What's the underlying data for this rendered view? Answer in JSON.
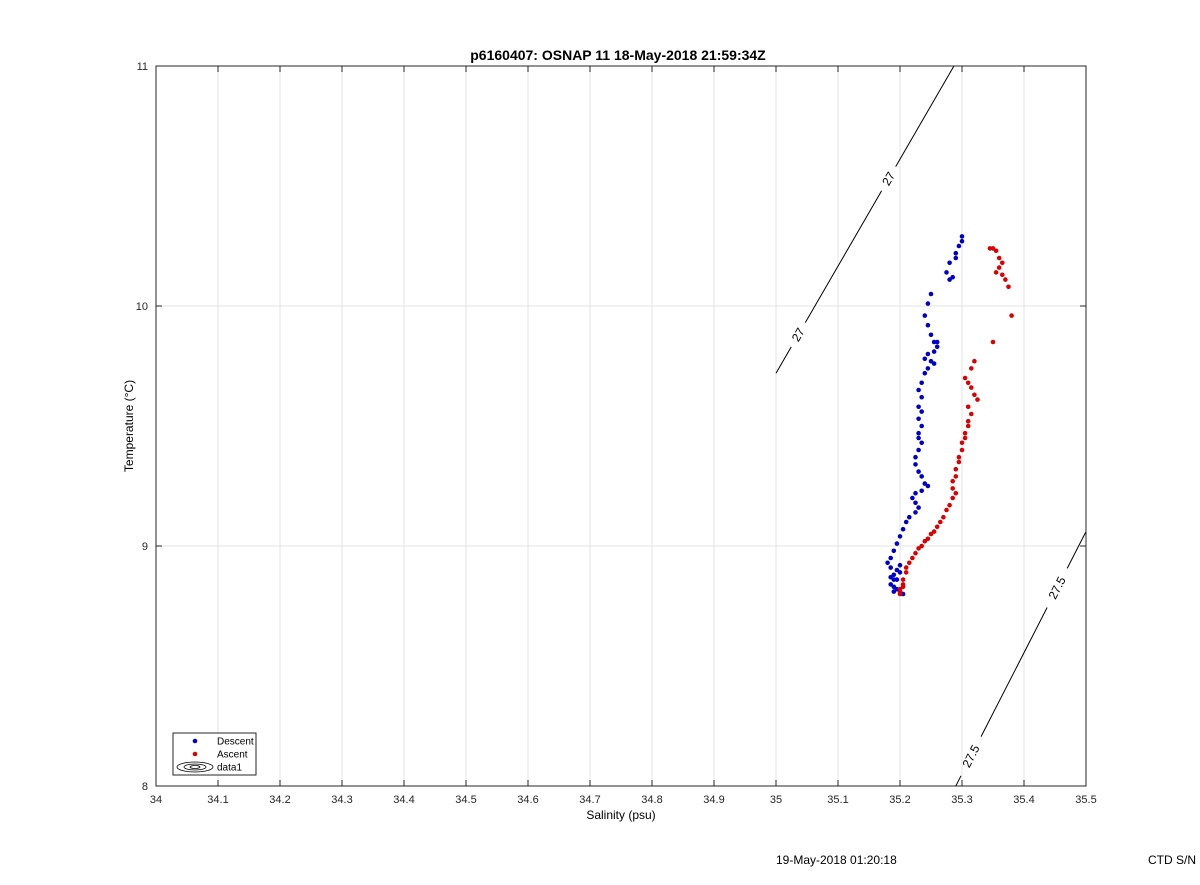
{
  "chart_data": {
    "type": "scatter",
    "title": "p6160407: OSNAP 11 18-May-2018 21:59:34Z",
    "xlabel": "Salinity (psu)",
    "ylabel": "Temperature (°C)",
    "xlim": [
      34,
      35.5
    ],
    "ylim": [
      8,
      11
    ],
    "x_ticks": [
      34,
      34.1,
      34.2,
      34.3,
      34.4,
      34.5,
      34.6,
      34.7,
      34.8,
      34.9,
      35,
      35.1,
      35.2,
      35.3,
      35.4,
      35.5
    ],
    "x_tick_labels": [
      "34",
      "34.1",
      "34.2",
      "34.3",
      "34.4",
      "34.5",
      "34.6",
      "34.7",
      "34.8",
      "34.9",
      "35",
      "35.1",
      "35.2",
      "35.3",
      "35.4",
      "35.5"
    ],
    "y_ticks": [
      8,
      9,
      10,
      11
    ],
    "y_tick_labels": [
      "8",
      "9",
      "10",
      "11"
    ],
    "grid": true,
    "legend_position": "bottom-left",
    "series": [
      {
        "name": "Descent",
        "color": "#0000cc",
        "points": [
          [
            35.3,
            10.29
          ],
          [
            35.3,
            10.27
          ],
          [
            35.295,
            10.25
          ],
          [
            35.29,
            10.22
          ],
          [
            35.29,
            10.2
          ],
          [
            35.28,
            10.18
          ],
          [
            35.275,
            10.14
          ],
          [
            35.285,
            10.12
          ],
          [
            35.28,
            10.11
          ],
          [
            35.25,
            10.05
          ],
          [
            35.245,
            10.01
          ],
          [
            35.24,
            9.96
          ],
          [
            35.245,
            9.92
          ],
          [
            35.25,
            9.88
          ],
          [
            35.255,
            9.85
          ],
          [
            35.26,
            9.85
          ],
          [
            35.26,
            9.83
          ],
          [
            35.255,
            9.81
          ],
          [
            35.245,
            9.8
          ],
          [
            35.24,
            9.78
          ],
          [
            35.25,
            9.77
          ],
          [
            35.255,
            9.76
          ],
          [
            35.245,
            9.74
          ],
          [
            35.24,
            9.72
          ],
          [
            35.235,
            9.68
          ],
          [
            35.23,
            9.65
          ],
          [
            35.235,
            9.62
          ],
          [
            35.23,
            9.58
          ],
          [
            35.235,
            9.56
          ],
          [
            35.23,
            9.53
          ],
          [
            35.235,
            9.5
          ],
          [
            35.23,
            9.47
          ],
          [
            35.23,
            9.45
          ],
          [
            35.235,
            9.43
          ],
          [
            35.23,
            9.4
          ],
          [
            35.225,
            9.37
          ],
          [
            35.225,
            9.34
          ],
          [
            35.23,
            9.31
          ],
          [
            35.235,
            9.29
          ],
          [
            35.24,
            9.26
          ],
          [
            35.245,
            9.25
          ],
          [
            35.235,
            9.23
          ],
          [
            35.225,
            9.22
          ],
          [
            35.22,
            9.2
          ],
          [
            35.225,
            9.18
          ],
          [
            35.23,
            9.16
          ],
          [
            35.225,
            9.14
          ],
          [
            35.215,
            9.12
          ],
          [
            35.21,
            9.1
          ],
          [
            35.205,
            9.07
          ],
          [
            35.2,
            9.04
          ],
          [
            35.195,
            9.01
          ],
          [
            35.19,
            8.98
          ],
          [
            35.185,
            8.95
          ],
          [
            35.18,
            8.93
          ],
          [
            35.185,
            8.91
          ],
          [
            35.195,
            8.9
          ],
          [
            35.2,
            8.89
          ],
          [
            35.19,
            8.88
          ],
          [
            35.185,
            8.87
          ],
          [
            35.19,
            8.86
          ],
          [
            35.185,
            8.84
          ],
          [
            35.19,
            8.83
          ],
          [
            35.195,
            8.82
          ],
          [
            35.2,
            8.81
          ],
          [
            35.205,
            8.8
          ],
          [
            35.19,
            8.81
          ],
          [
            35.195,
            8.86
          ],
          [
            35.2,
            8.92
          ]
        ]
      },
      {
        "name": "Ascent",
        "color": "#dd0000",
        "points": [
          [
            35.345,
            10.24
          ],
          [
            35.35,
            10.24
          ],
          [
            35.355,
            10.23
          ],
          [
            35.36,
            10.2
          ],
          [
            35.365,
            10.18
          ],
          [
            35.36,
            10.16
          ],
          [
            35.355,
            10.14
          ],
          [
            35.365,
            10.13
          ],
          [
            35.37,
            10.11
          ],
          [
            35.375,
            10.08
          ],
          [
            35.38,
            9.96
          ],
          [
            35.35,
            9.85
          ],
          [
            35.32,
            9.77
          ],
          [
            35.315,
            9.74
          ],
          [
            35.305,
            9.7
          ],
          [
            35.31,
            9.68
          ],
          [
            35.315,
            9.66
          ],
          [
            35.32,
            9.63
          ],
          [
            35.325,
            9.61
          ],
          [
            35.31,
            9.58
          ],
          [
            35.315,
            9.55
          ],
          [
            35.31,
            9.52
          ],
          [
            35.31,
            9.5
          ],
          [
            35.305,
            9.47
          ],
          [
            35.305,
            9.45
          ],
          [
            35.3,
            9.43
          ],
          [
            35.3,
            9.4
          ],
          [
            35.295,
            9.37
          ],
          [
            35.295,
            9.35
          ],
          [
            35.29,
            9.32
          ],
          [
            35.29,
            9.29
          ],
          [
            35.285,
            9.27
          ],
          [
            35.285,
            9.24
          ],
          [
            35.29,
            9.22
          ],
          [
            35.285,
            9.2
          ],
          [
            35.28,
            9.17
          ],
          [
            35.275,
            9.15
          ],
          [
            35.27,
            9.12
          ],
          [
            35.265,
            9.1
          ],
          [
            35.26,
            9.08
          ],
          [
            35.255,
            9.06
          ],
          [
            35.25,
            9.05
          ],
          [
            35.245,
            9.03
          ],
          [
            35.24,
            9.02
          ],
          [
            35.235,
            9.0
          ],
          [
            35.23,
            8.99
          ],
          [
            35.225,
            8.97
          ],
          [
            35.22,
            8.95
          ],
          [
            35.215,
            8.93
          ],
          [
            35.21,
            8.91
          ],
          [
            35.21,
            8.89
          ],
          [
            35.205,
            8.86
          ],
          [
            35.205,
            8.84
          ],
          [
            35.2,
            8.82
          ],
          [
            35.2,
            8.8
          ],
          [
            35.2,
            8.81
          ],
          [
            35.205,
            8.83
          ]
        ]
      }
    ],
    "contours": [
      {
        "name": "data1",
        "level_label": "27",
        "color": "#000000",
        "segment": [
          [
            35.0,
            9.72
          ],
          [
            35.287,
            11.0
          ]
        ],
        "label_positions": [
          [
            35.036,
            9.88
          ],
          [
            35.182,
            10.53
          ]
        ]
      },
      {
        "name": "data1",
        "level_label": "27.5",
        "color": "#000000",
        "segment": [
          [
            35.29,
            8.0
          ],
          [
            35.5,
            9.06
          ]
        ],
        "label_positions": [
          [
            35.31,
            8.13
          ],
          [
            35.465,
            8.81
          ]
        ]
      }
    ],
    "legend": [
      {
        "label": "Descent",
        "marker": "dot",
        "color": "#0000cc"
      },
      {
        "label": "Ascent",
        "marker": "dot",
        "color": "#dd0000"
      },
      {
        "label": "data1",
        "marker": "contour",
        "color": "#000000"
      }
    ]
  },
  "footer": {
    "date": "19-May-2018 01:20:18",
    "ctd": "CTD S/N"
  }
}
